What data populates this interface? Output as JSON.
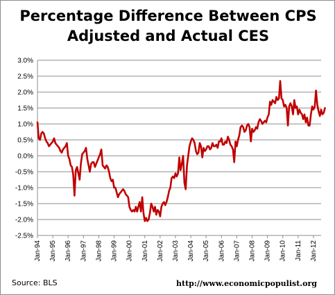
{
  "title_line1": "Percentage Difference Between CPS",
  "title_line2": "Adjusted and Actual CES",
  "source": "Source:  BLS",
  "url": "http://www.economicpopulist.org",
  "chart_data": {
    "type": "line",
    "series_color": "#c00000",
    "x_start": "Jan-94",
    "ylim": [
      -2.5,
      3.0
    ],
    "y_step": 0.5,
    "grid": "horizontal",
    "y_ticks": [
      "3.0%",
      "2.5%",
      "2.0%",
      "1.5%",
      "1.0%",
      "0.5%",
      "0.0%",
      "-0.5%",
      "-1.0%",
      "-1.5%",
      "-2.0%",
      "-2.5%"
    ],
    "x_ticks": [
      "Jan-94",
      "Jan-95",
      "Jan-96",
      "Jan-97",
      "Jan-98",
      "Jan-99",
      "Jan-00",
      "Jan-01",
      "Jan-02",
      "Jan-03",
      "Jan-04",
      "Jan-05",
      "Jan-06",
      "Jan-07",
      "Jan-08",
      "Jan-09",
      "Jan-10",
      "Jan-11",
      "Jan-12"
    ],
    "values": [
      1.05,
      0.55,
      0.5,
      0.7,
      0.75,
      0.7,
      0.55,
      0.45,
      0.4,
      0.3,
      0.35,
      0.4,
      0.45,
      0.55,
      0.4,
      0.35,
      0.3,
      0.25,
      0.15,
      0.1,
      0.2,
      0.25,
      0.3,
      0.4,
      0.0,
      -0.1,
      -0.3,
      -0.35,
      -0.6,
      -1.25,
      -0.45,
      -0.35,
      -0.55,
      -0.75,
      -0.25,
      0.05,
      0.1,
      0.15,
      0.25,
      -0.1,
      -0.3,
      -0.5,
      -0.25,
      -0.2,
      -0.2,
      -0.35,
      -0.25,
      -0.15,
      -0.05,
      0.05,
      0.2,
      -0.3,
      -0.35,
      -0.4,
      -0.3,
      -0.35,
      -0.5,
      -0.7,
      -0.8,
      -0.75,
      -1.0,
      -1.0,
      -1.15,
      -1.3,
      -1.2,
      -1.15,
      -1.1,
      -1.05,
      -1.1,
      -1.2,
      -1.25,
      -1.3,
      -1.6,
      -1.7,
      -1.75,
      -1.7,
      -1.75,
      -1.6,
      -1.75,
      -1.6,
      -1.45,
      -1.75,
      -1.3,
      -1.8,
      -2.05,
      -1.95,
      -2.05,
      -2.0,
      -1.8,
      -1.5,
      -1.6,
      -1.75,
      -1.6,
      -1.85,
      -1.7,
      -1.75,
      -1.9,
      -1.6,
      -1.5,
      -1.45,
      -1.55,
      -1.45,
      -1.3,
      -1.1,
      -1.0,
      -0.7,
      -0.65,
      -0.7,
      -0.55,
      -0.65,
      -0.55,
      -0.05,
      -0.45,
      -0.25,
      0.0,
      -0.85,
      -1.05,
      -0.3,
      0.0,
      0.3,
      0.45,
      0.55,
      0.5,
      0.4,
      0.15,
      0.05,
      0.1,
      0.4,
      0.3,
      -0.05,
      0.25,
      0.15,
      0.2,
      0.3,
      0.3,
      0.2,
      0.25,
      0.4,
      0.3,
      0.3,
      0.35,
      0.25,
      0.45,
      0.45,
      0.55,
      0.35,
      0.35,
      0.45,
      0.4,
      0.6,
      0.5,
      0.35,
      0.3,
      0.2,
      -0.2,
      0.45,
      0.3,
      0.5,
      0.65,
      0.9,
      0.95,
      0.9,
      0.75,
      0.8,
      0.95,
      1.0,
      0.9,
      0.45,
      0.85,
      0.75,
      0.8,
      0.9,
      0.85,
      1.05,
      1.15,
      1.1,
      1.0,
      1.05,
      1.1,
      1.05,
      1.2,
      1.3,
      1.7,
      1.6,
      1.75,
      1.7,
      1.65,
      1.85,
      1.75,
      1.8,
      2.35,
      1.8,
      1.75,
      1.55,
      1.6,
      1.5,
      0.95,
      1.55,
      1.65,
      1.55,
      1.3,
      1.75,
      1.5,
      1.55,
      1.3,
      1.45,
      1.35,
      1.3,
      1.15,
      1.3,
      1.05,
      1.2,
      0.95,
      0.95,
      1.3,
      1.55,
      1.45,
      1.55,
      2.05,
      1.6,
      1.4,
      1.25,
      1.45,
      1.3,
      1.35,
      1.5
    ]
  }
}
